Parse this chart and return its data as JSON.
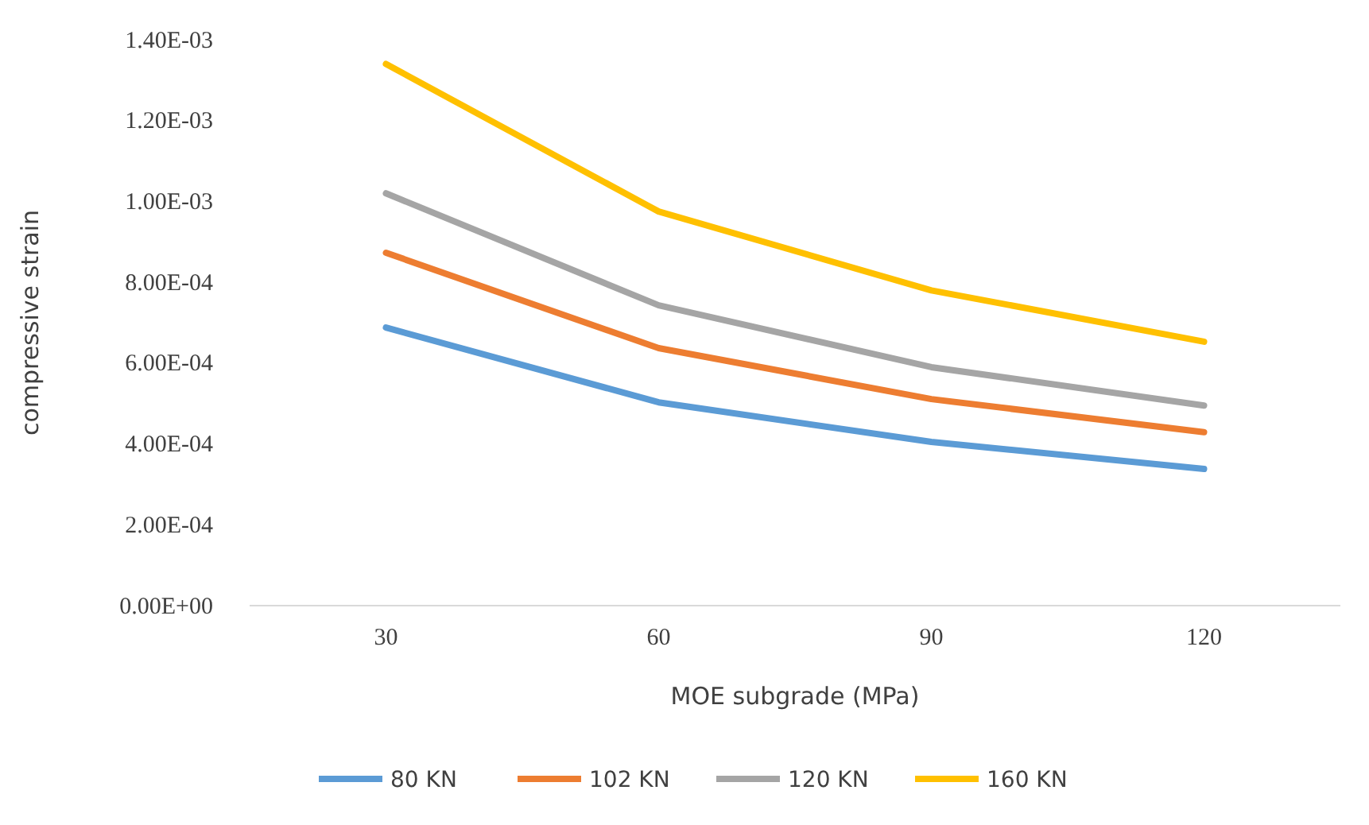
{
  "chart_data": {
    "type": "line",
    "xlabel": "MOE subgrade (MPa)",
    "ylabel": "compressive strain",
    "categories": [
      "30",
      "60",
      "90",
      "120"
    ],
    "series": [
      {
        "name": "80 KN",
        "color": "#5b9bd5",
        "values": [
          0.000688,
          0.000503,
          0.000405,
          0.000338
        ]
      },
      {
        "name": "102 KN",
        "color": "#ed7d31",
        "values": [
          0.000873,
          0.000637,
          0.000511,
          0.000429
        ]
      },
      {
        "name": "120 KN",
        "color": "#a5a5a5",
        "values": [
          0.00102,
          0.000743,
          0.00059,
          0.000495
        ]
      },
      {
        "name": "160 KN",
        "color": "#ffc000",
        "values": [
          0.00134,
          0.000975,
          0.00078,
          0.000653
        ]
      }
    ],
    "ylim": [
      0,
      0.0014
    ],
    "yticks": [
      {
        "value": 0,
        "label": "0.00E+00"
      },
      {
        "value": 0.0002,
        "label": "2.00E-04"
      },
      {
        "value": 0.0004,
        "label": "4.00E-04"
      },
      {
        "value": 0.0006,
        "label": "6.00E-04"
      },
      {
        "value": 0.0008,
        "label": "8.00E-04"
      },
      {
        "value": 0.001,
        "label": "1.00E-03"
      },
      {
        "value": 0.0012,
        "label": "1.20E-03"
      },
      {
        "value": 0.0014,
        "label": "1.40E-03"
      }
    ],
    "grid": false,
    "legend": "bottom",
    "marker": "none",
    "line_style": "solid"
  }
}
